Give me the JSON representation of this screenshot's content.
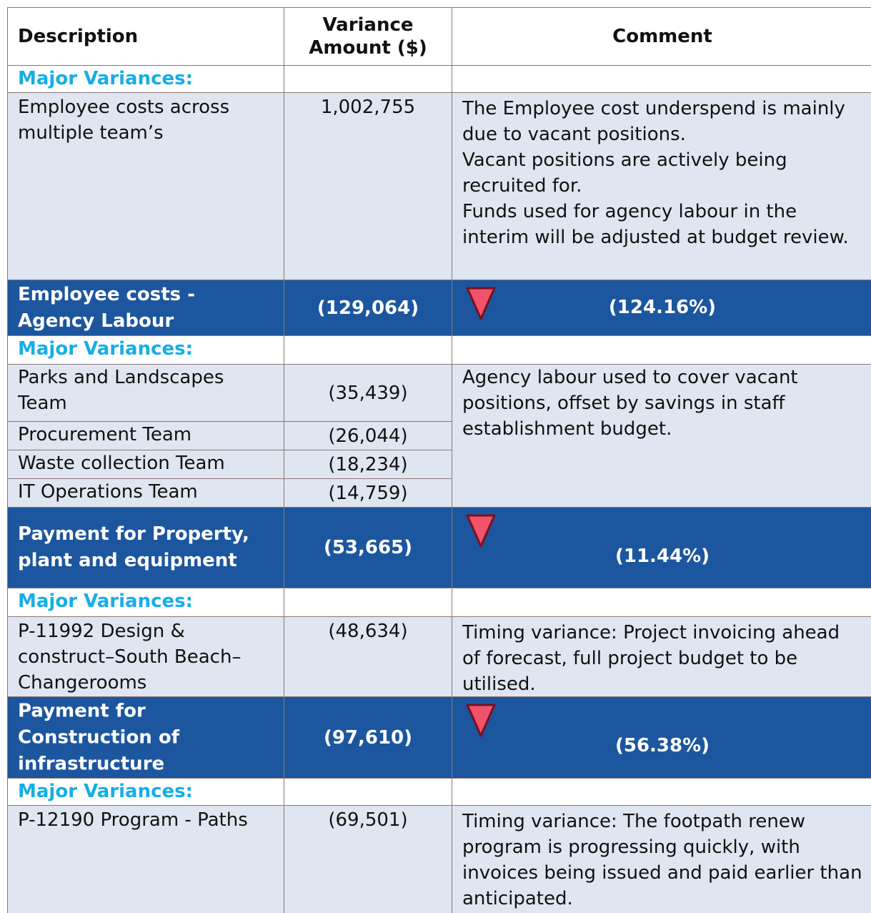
{
  "table": {
    "header": [
      "Description",
      "Variance Amount ($)",
      "Comment"
    ],
    "rows": [
      {
        "label": "Major Variances:"
      },
      {
        "description": "Employee costs across multiple team’s",
        "amount": "1,002,755",
        "comment": [
          "The Employee cost underspend is mainly due to vacant positions.",
          "Vacant positions are actively being recruited for.",
          "Funds used for agency labour in the interim will be adjusted at budget review."
        ]
      },
      {
        "description": "Employee costs - Agency Labour",
        "amount": "(129,064)",
        "percent": "(124.16%)"
      },
      {
        "label": "Major Variances:"
      },
      {
        "items": [
          {
            "description": "Parks and Landscapes Team",
            "amount": "(35,439)"
          },
          {
            "description": "Procurement Team",
            "amount": "(26,044)"
          },
          {
            "description": "Waste collection Team",
            "amount": "(18,234)"
          },
          {
            "description": "IT Operations Team",
            "amount": "(14,759)"
          }
        ],
        "comment": [
          "Agency labour used to cover vacant positions, offset by savings in staff establishment budget."
        ]
      },
      {
        "description": "Payment for Property, plant and equipment",
        "amount": "(53,665)",
        "percent": "(11.44%)"
      },
      {
        "label": "Major Variances:"
      },
      {
        "description": "P-11992 Design & construct–South Beach–Changerooms",
        "amount": "(48,634)",
        "comment": [
          "Timing variance: Project invoicing ahead of forecast, full project budget to be utilised."
        ]
      },
      {
        "description": "Payment for Construction of infrastructure",
        "amount": "(97,610)",
        "percent": "(56.38%)"
      },
      {
        "label": "Major Variances:"
      },
      {
        "description": "P-12190 Program - Paths",
        "amount": "(69,501)",
        "comment": [
          "Timing variance: The footpath renew program is progressing quickly, with invoices being issued and paid earlier than anticipated."
        ]
      }
    ]
  }
}
